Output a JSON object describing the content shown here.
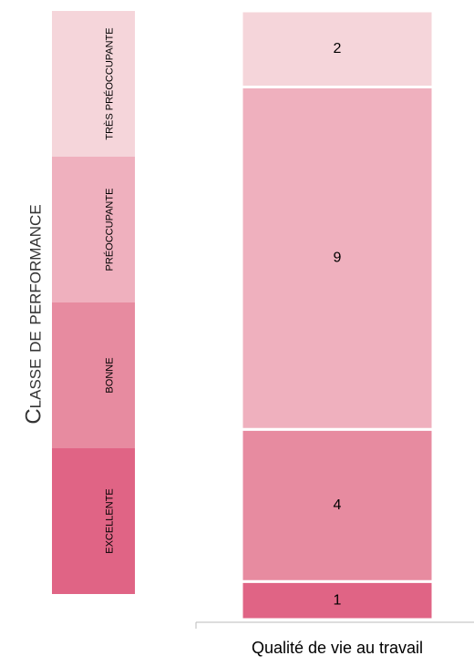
{
  "chart_data": {
    "type": "bar",
    "y_label": "Classe de performance",
    "categories": [
      "Qualité de vie au travail"
    ],
    "ylim": [
      0,
      16
    ],
    "series": [
      {
        "name": "EXCELLENTE",
        "color": "#e06485",
        "values": [
          1
        ]
      },
      {
        "name": "BONNE",
        "color": "#e78ba0",
        "values": [
          4
        ]
      },
      {
        "name": "PRÉOCCUPANTE",
        "color": "#efb0be",
        "values": [
          9
        ]
      },
      {
        "name": "TRÈS PRÉOCCUPANTE",
        "color": "#f5d5da",
        "values": [
          2
        ]
      }
    ]
  }
}
